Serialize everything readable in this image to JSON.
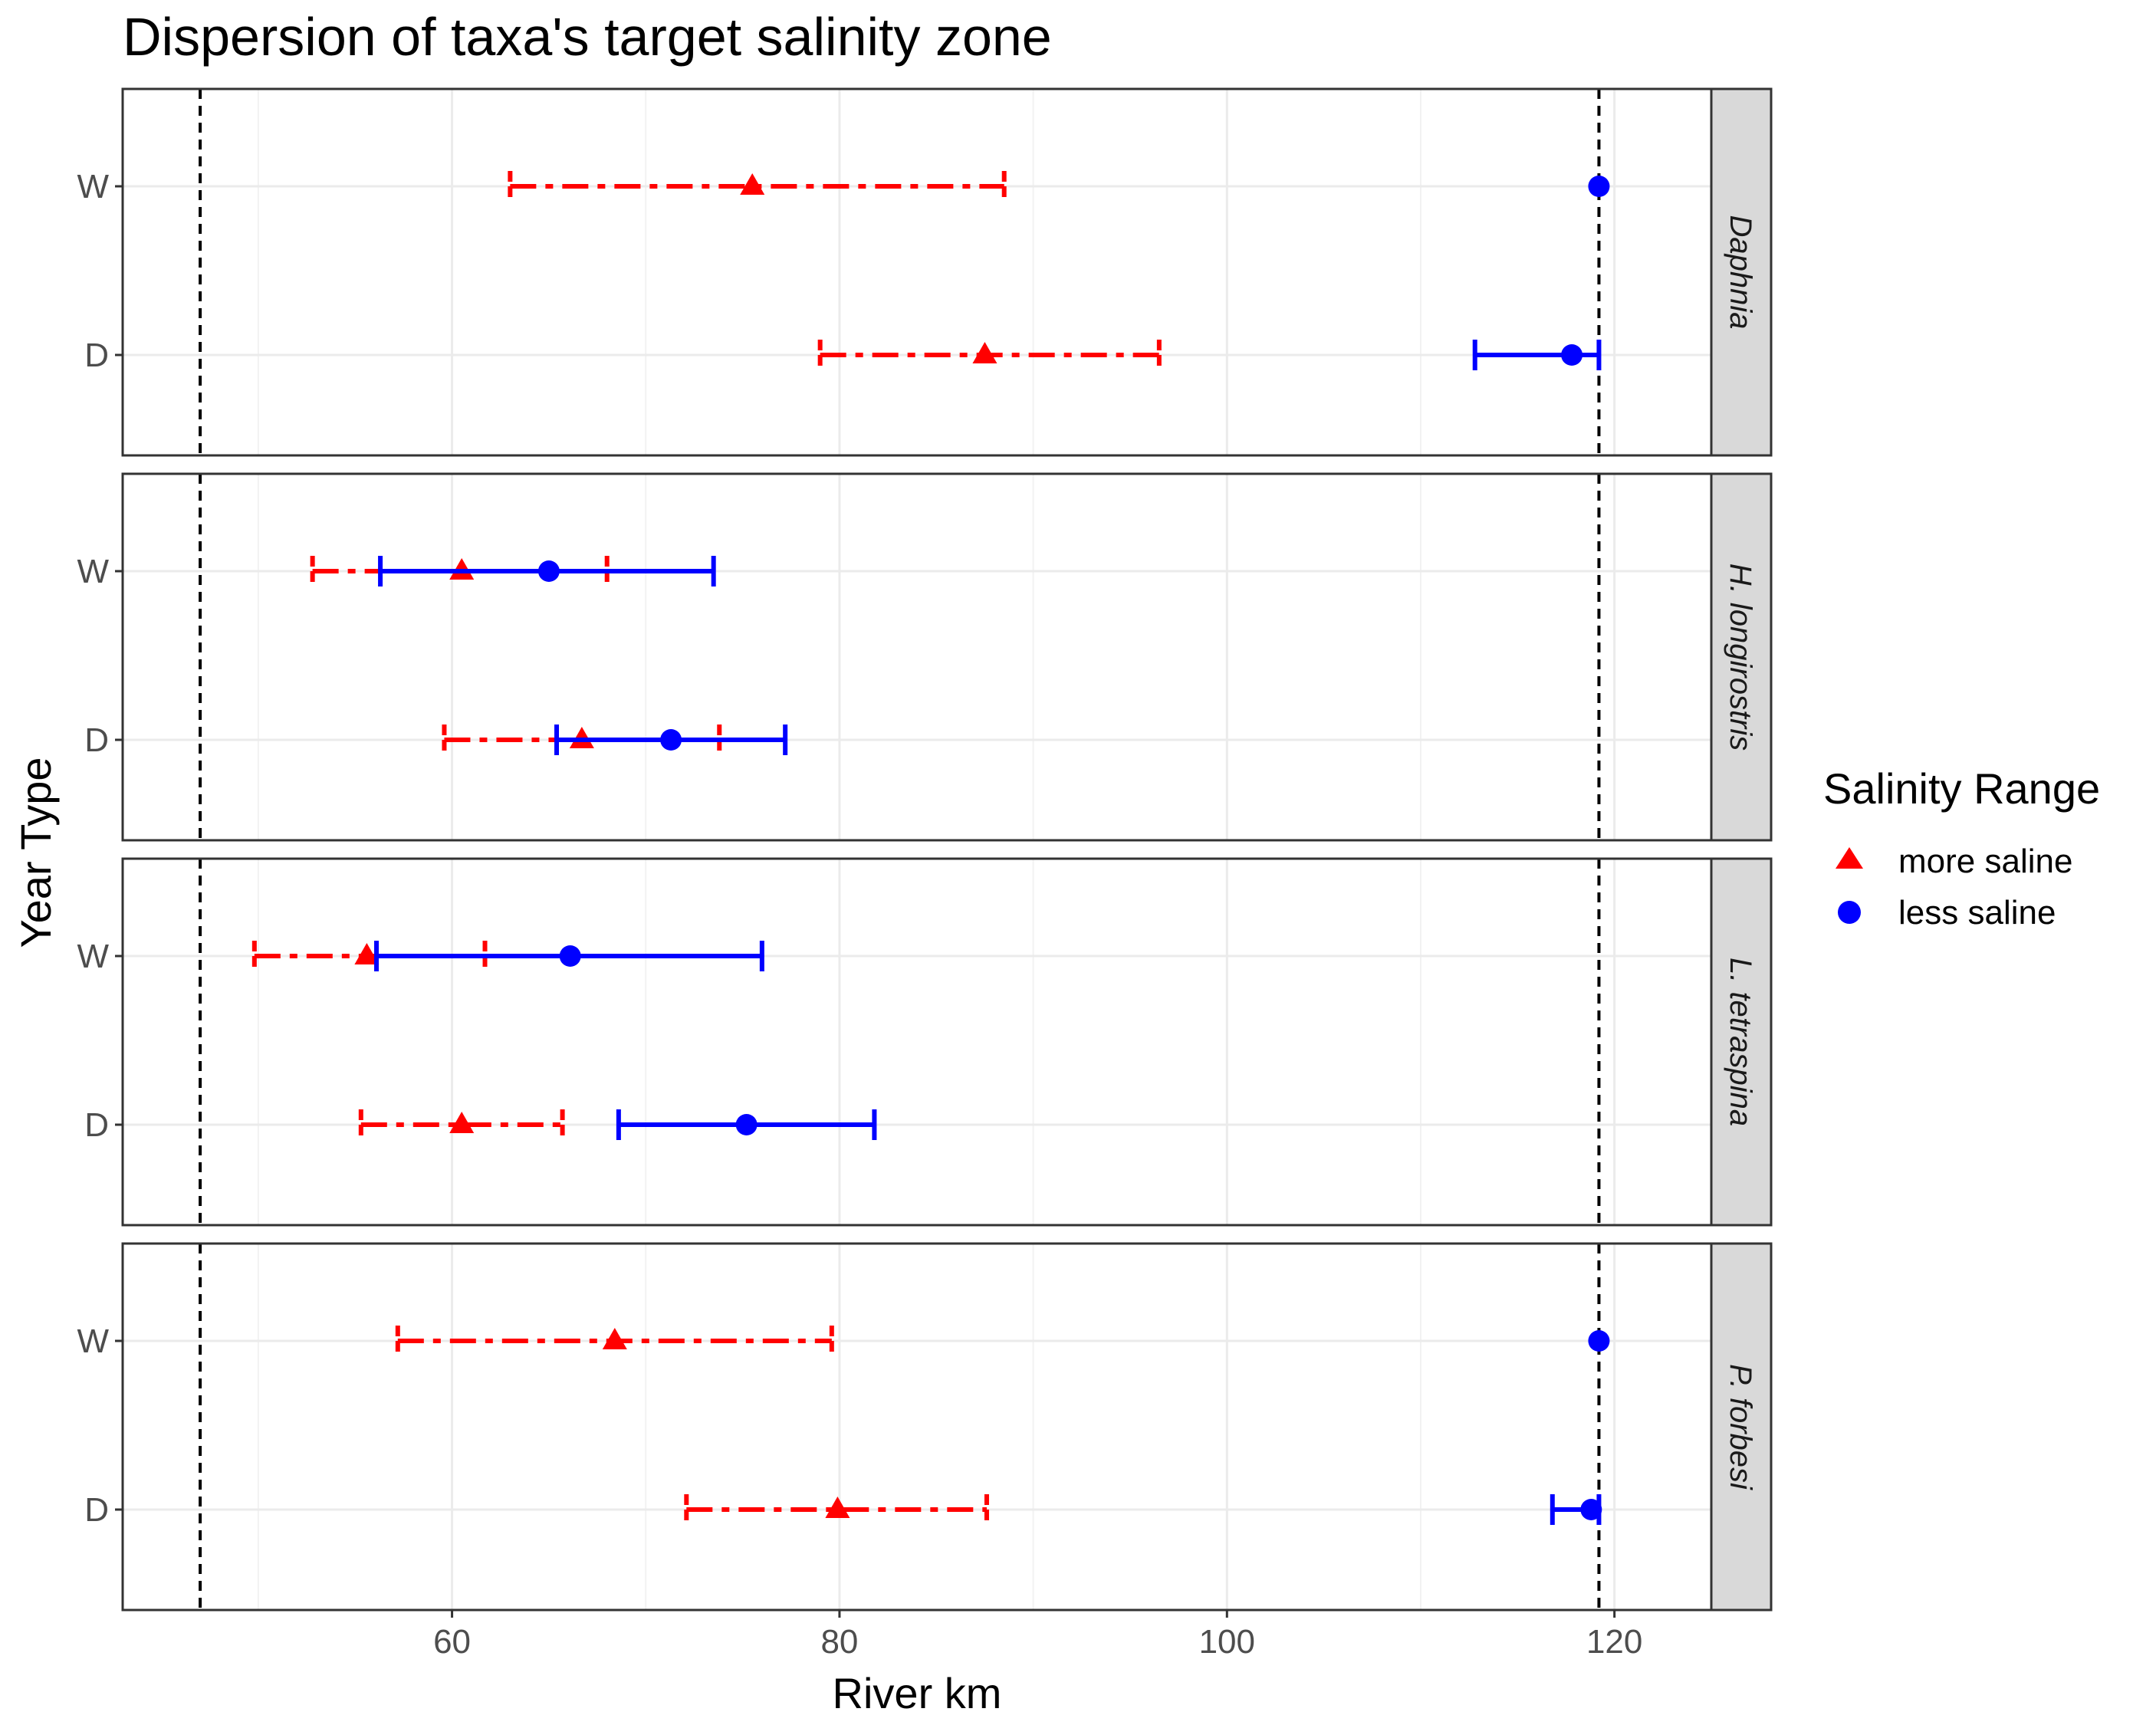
{
  "chart_data": {
    "type": "dot-errorbar",
    "title": "Dispersion of taxa's target salinity zone",
    "xlabel": "River km",
    "ylabel": "Year Type",
    "xlim": [
      43,
      125
    ],
    "x_ticks": [
      60,
      80,
      100,
      120
    ],
    "y_categories": [
      "W",
      "D"
    ],
    "reference_lines": [
      47,
      119.2
    ],
    "grid": true,
    "legend": {
      "title": "Salinity Range",
      "position": "right",
      "entries": [
        {
          "label": "more saline",
          "color": "#ff0000",
          "shape": "triangle"
        },
        {
          "label": "less saline",
          "color": "#0000ff",
          "shape": "circle"
        }
      ]
    },
    "panels": [
      {
        "label": "Daphnia",
        "series": [
          {
            "name": "more saline",
            "color": "#ff0000",
            "points": [
              {
                "y": "W",
                "x": 75.5,
                "xmin": 63.0,
                "xmax": 88.5
              },
              {
                "y": "D",
                "x": 87.5,
                "xmin": 79.0,
                "xmax": 96.5
              }
            ]
          },
          {
            "name": "less saline",
            "color": "#0000ff",
            "points": [
              {
                "y": "W",
                "x": 119.2,
                "xmin": 119.2,
                "xmax": 119.2
              },
              {
                "y": "D",
                "x": 117.8,
                "xmin": 112.8,
                "xmax": 119.2
              }
            ]
          }
        ]
      },
      {
        "label": "H. longirostris",
        "series": [
          {
            "name": "more saline",
            "color": "#ff0000",
            "points": [
              {
                "y": "W",
                "x": 60.5,
                "xmin": 52.8,
                "xmax": 68.0
              },
              {
                "y": "D",
                "x": 66.7,
                "xmin": 59.6,
                "xmax": 73.8
              }
            ]
          },
          {
            "name": "less saline",
            "color": "#0000ff",
            "points": [
              {
                "y": "W",
                "x": 65.0,
                "xmin": 56.3,
                "xmax": 73.5
              },
              {
                "y": "D",
                "x": 71.3,
                "xmin": 65.4,
                "xmax": 77.2
              }
            ]
          }
        ]
      },
      {
        "label": "L. tetraspina",
        "series": [
          {
            "name": "more saline",
            "color": "#ff0000",
            "points": [
              {
                "y": "W",
                "x": 55.6,
                "xmin": 49.8,
                "xmax": 61.7
              },
              {
                "y": "D",
                "x": 60.5,
                "xmin": 55.3,
                "xmax": 65.7
              }
            ]
          },
          {
            "name": "less saline",
            "color": "#0000ff",
            "points": [
              {
                "y": "W",
                "x": 66.1,
                "xmin": 56.1,
                "xmax": 76.0
              },
              {
                "y": "D",
                "x": 75.2,
                "xmin": 68.6,
                "xmax": 81.8
              }
            ]
          }
        ]
      },
      {
        "label": "P. forbesi",
        "series": [
          {
            "name": "more saline",
            "color": "#ff0000",
            "points": [
              {
                "y": "W",
                "x": 68.4,
                "xmin": 57.2,
                "xmax": 79.6
              },
              {
                "y": "D",
                "x": 79.9,
                "xmin": 72.1,
                "xmax": 87.6
              }
            ]
          },
          {
            "name": "less saline",
            "color": "#0000ff",
            "points": [
              {
                "y": "W",
                "x": 119.2,
                "xmin": 119.2,
                "xmax": 119.2
              },
              {
                "y": "D",
                "x": 118.8,
                "xmin": 116.8,
                "xmax": 119.2
              }
            ]
          }
        ]
      }
    ]
  }
}
